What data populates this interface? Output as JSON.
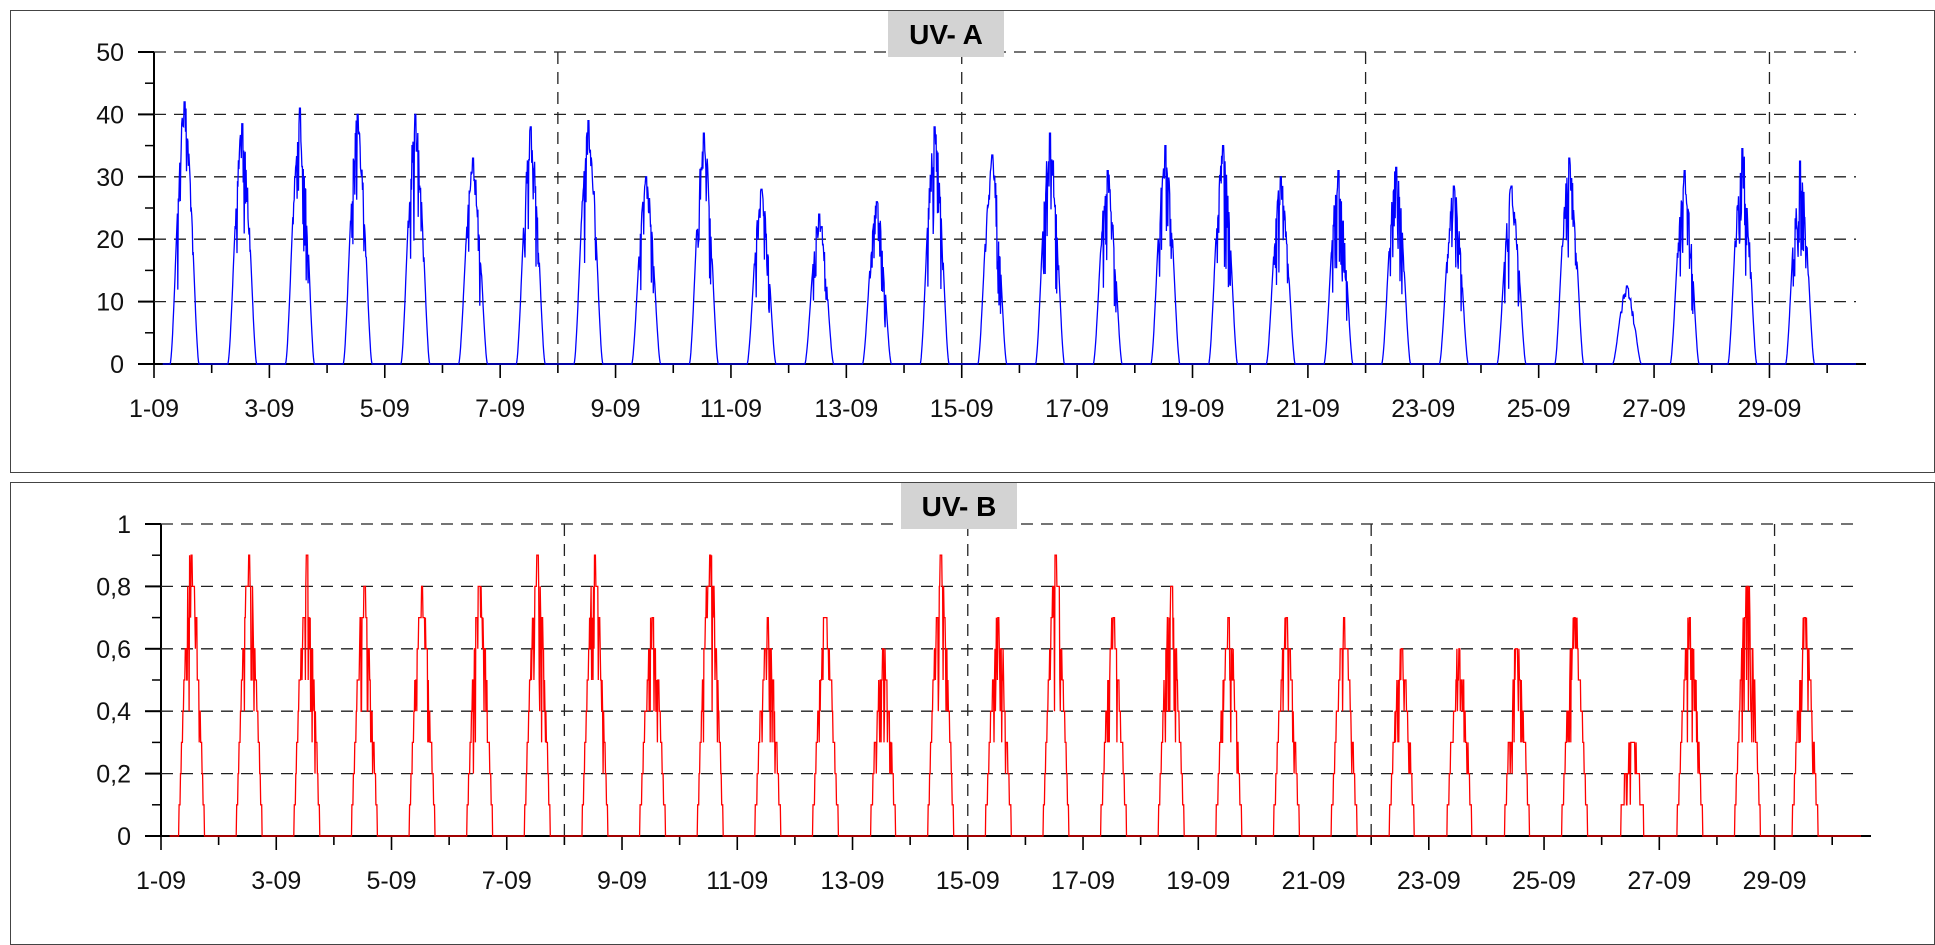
{
  "chart_data": [
    {
      "type": "line",
      "title": "UV- A",
      "xlabel": "",
      "ylabel": "",
      "x_unit": "day of September",
      "xlim": [
        1,
        30.5
      ],
      "ylim": [
        0,
        50
      ],
      "yticks": [
        0,
        10,
        20,
        30,
        40,
        50
      ],
      "yticklabels": [
        "0",
        "10",
        "20",
        "30",
        "40",
        "50"
      ],
      "xticklabels": [
        "1-09",
        "3-09",
        "5-09",
        "7-09",
        "9-09",
        "11-09",
        "13-09",
        "15-09",
        "17-09",
        "19-09",
        "21-09",
        "23-09",
        "25-09",
        "27-09",
        "29-09"
      ],
      "grid": true,
      "color": "#0000ff",
      "series": [
        {
          "daily_peaks": [
            42,
            38.5,
            41,
            40,
            40,
            33,
            38,
            39,
            30,
            37,
            28,
            24,
            26,
            38,
            33.5,
            37,
            31,
            35,
            35,
            30,
            31,
            31.5,
            28.5,
            28.5,
            33,
            12.5,
            31,
            34.5,
            32.5
          ]
        }
      ]
    },
    {
      "type": "line",
      "title": "UV- B",
      "xlabel": "",
      "ylabel": "",
      "x_unit": "day of September",
      "xlim": [
        1,
        30.5
      ],
      "ylim": [
        0,
        1
      ],
      "yticks": [
        0,
        0.2,
        0.4,
        0.6,
        0.8,
        1
      ],
      "yticklabels": [
        "0",
        "0,2",
        "0,4",
        "0,6",
        "0,8",
        "1"
      ],
      "xticklabels": [
        "1-09",
        "3-09",
        "5-09",
        "7-09",
        "9-09",
        "11-09",
        "13-09",
        "15-09",
        "17-09",
        "19-09",
        "21-09",
        "23-09",
        "25-09",
        "27-09",
        "29-09"
      ],
      "grid": true,
      "color": "#ff0000",
      "series": [
        {
          "daily_peaks": [
            0.9,
            0.9,
            0.9,
            0.8,
            0.8,
            0.8,
            0.9,
            0.9,
            0.7,
            0.9,
            0.7,
            0.7,
            0.6,
            0.9,
            0.7,
            0.9,
            0.7,
            0.8,
            0.7,
            0.7,
            0.7,
            0.6,
            0.6,
            0.6,
            0.7,
            0.3,
            0.7,
            0.8,
            0.7
          ]
        }
      ]
    }
  ]
}
